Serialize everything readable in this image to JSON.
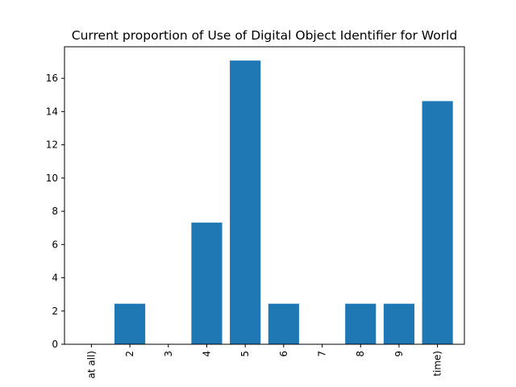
{
  "chart_data": {
    "type": "bar",
    "title": "Current proportion of Use of Digital Object Identifier for World",
    "xlabel": "",
    "ylabel": "",
    "categories": [
      "at all)",
      "2",
      "3",
      "4",
      "5",
      "6",
      "7",
      "8",
      "9",
      "time)"
    ],
    "values": [
      0,
      2.44,
      0,
      7.32,
      17.07,
      2.44,
      0,
      2.44,
      2.44,
      14.63
    ],
    "ylim": [
      0,
      17.9
    ],
    "yticks": [
      0,
      2,
      4,
      6,
      8,
      10,
      12,
      14,
      16
    ],
    "bar_color": "#1f77b4",
    "grid": false,
    "legend": "none"
  }
}
